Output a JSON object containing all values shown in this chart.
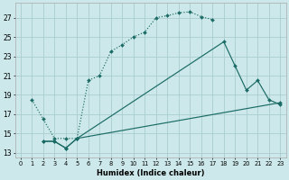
{
  "xlabel": "Humidex (Indice chaleur)",
  "bg_color": "#cce8ea",
  "grid_color": "#aacdd0",
  "line_color": "#1a6b65",
  "xlim": [
    -0.5,
    23.5
  ],
  "ylim": [
    12.5,
    28.5
  ],
  "xticks": [
    0,
    1,
    2,
    3,
    4,
    5,
    6,
    7,
    8,
    9,
    10,
    11,
    12,
    13,
    14,
    15,
    16,
    17,
    18,
    19,
    20,
    21,
    22,
    23
  ],
  "yticks": [
    13,
    15,
    17,
    19,
    21,
    23,
    25,
    27
  ],
  "series": [
    {
      "x": [
        1,
        2,
        3,
        4,
        5,
        6,
        7,
        8,
        9,
        10,
        11,
        12,
        13,
        14,
        15,
        16,
        17
      ],
      "y": [
        18.5,
        16.5,
        14.5,
        14.5,
        14.5,
        20.5,
        21.0,
        23.5,
        24.2,
        25.0,
        25.5,
        27.0,
        27.2,
        27.5,
        27.6,
        27.1,
        26.8
      ],
      "linestyle": ":"
    },
    {
      "x": [
        2,
        3,
        4,
        5,
        18,
        19,
        20,
        21,
        22,
        23
      ],
      "y": [
        14.2,
        14.2,
        13.5,
        14.5,
        24.5,
        22.0,
        19.5,
        20.5,
        18.5,
        18.0
      ],
      "linestyle": "-"
    },
    {
      "x": [
        2,
        3,
        4,
        5,
        23
      ],
      "y": [
        14.2,
        14.2,
        13.5,
        14.5,
        18.2
      ],
      "linestyle": "-"
    }
  ]
}
